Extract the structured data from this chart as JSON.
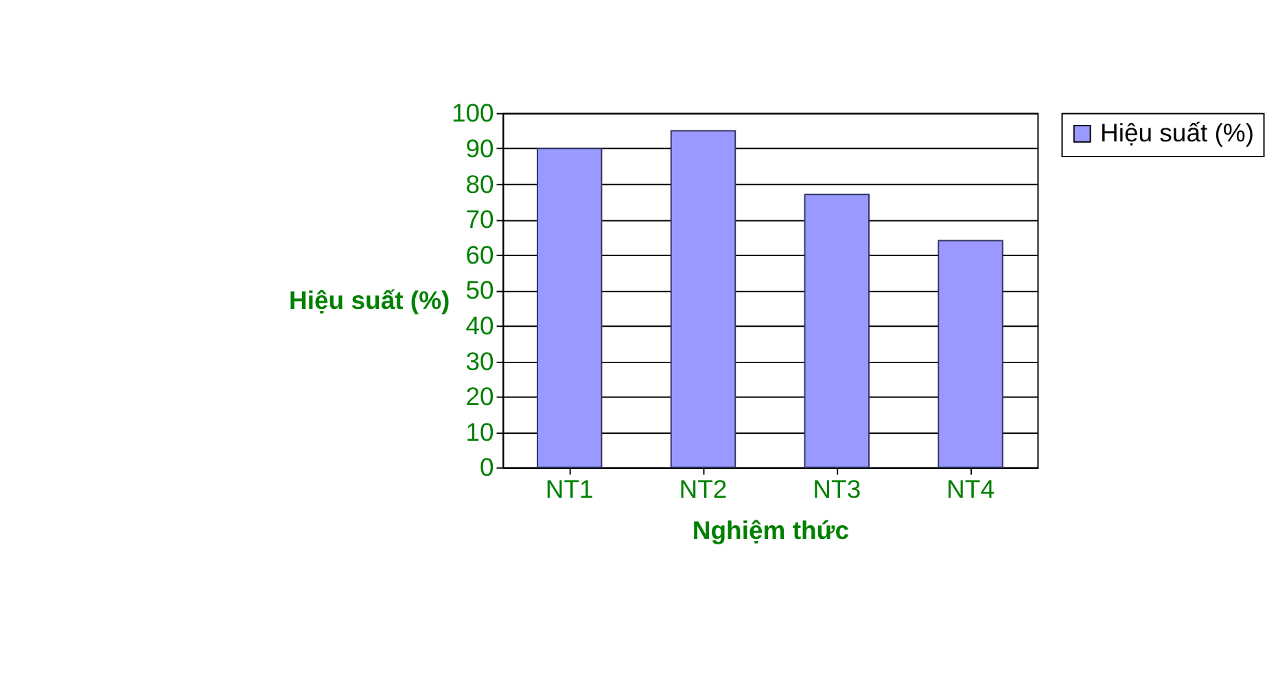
{
  "chart_data": {
    "type": "bar",
    "xlabel": "Nghiệm thức",
    "ylabel": "Hiệu suất (%)",
    "categories": [
      "NT1",
      "NT2",
      "NT3",
      "NT4"
    ],
    "series": [
      {
        "name": "Hiệu suất (%)",
        "color": "#9999ff",
        "values": [
          90,
          95,
          77,
          64
        ]
      }
    ],
    "ylim": [
      0,
      100
    ],
    "yticks": [
      0,
      10,
      20,
      30,
      40,
      50,
      60,
      70,
      80,
      90,
      100
    ],
    "grid": "y",
    "legend": "right"
  }
}
